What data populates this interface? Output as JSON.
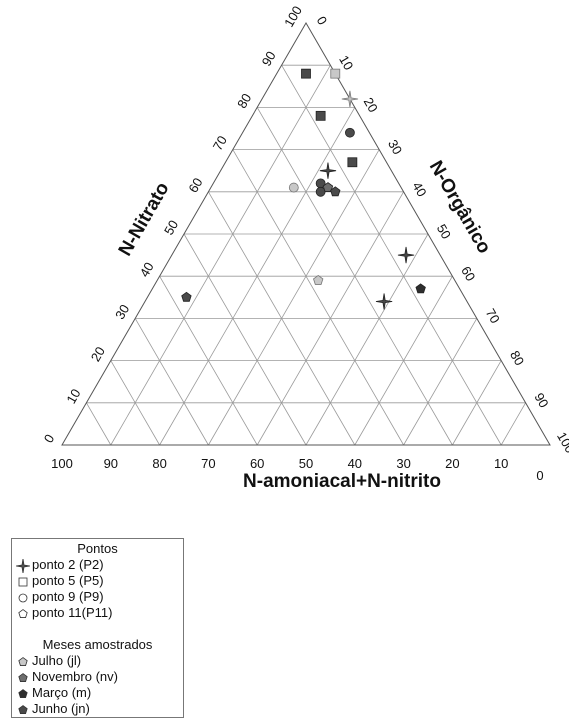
{
  "chart_data": {
    "type": "scatter",
    "subtype": "ternary",
    "title": "",
    "axes": {
      "left": {
        "label": "N-Nitrato",
        "ticks": [
          "0",
          "10",
          "20",
          "30",
          "40",
          "50",
          "60",
          "70",
          "80",
          "90",
          "100"
        ]
      },
      "right": {
        "label": "N-Orgânico",
        "ticks": [
          "0",
          "10",
          "20",
          "30",
          "40",
          "50",
          "60",
          "70",
          "80",
          "90",
          "100"
        ]
      },
      "bottom": {
        "label": "N-amoniacal+N-nitrito",
        "ticks": [
          "100",
          "90",
          "80",
          "70",
          "60",
          "50",
          "40",
          "30",
          "20",
          "10",
          "0"
        ]
      }
    },
    "grid": true,
    "grid_step": 10,
    "points": [
      {
        "point": "P2",
        "month": "jl",
        "nitrato": 82,
        "organico": 18,
        "amoniacal": 0
      },
      {
        "point": "P2",
        "month": "jn",
        "nitrato": 65,
        "organico": 22,
        "amoniacal": 13
      },
      {
        "point": "P2",
        "month": "jn",
        "nitrato": 45,
        "organico": 48,
        "amoniacal": 7
      },
      {
        "point": "P2",
        "month": "jn",
        "nitrato": 34,
        "organico": 49,
        "amoniacal": 17
      },
      {
        "point": "P5",
        "month": "jl",
        "nitrato": 88,
        "organico": 12,
        "amoniacal": 0
      },
      {
        "point": "P5",
        "month": "jn",
        "nitrato": 88,
        "organico": 6,
        "amoniacal": 6
      },
      {
        "point": "P5",
        "month": "jn",
        "nitrato": 78,
        "organico": 14,
        "amoniacal": 8
      },
      {
        "point": "P5",
        "month": "jn",
        "nitrato": 67,
        "organico": 26,
        "amoniacal": 7
      },
      {
        "point": "P9",
        "month": "jn",
        "nitrato": 74,
        "organico": 22,
        "amoniacal": 4
      },
      {
        "point": "P9",
        "month": "jl",
        "nitrato": 61,
        "organico": 17,
        "amoniacal": 22
      },
      {
        "point": "P9",
        "month": "jn",
        "nitrato": 62,
        "organico": 22,
        "amoniacal": 16
      },
      {
        "point": "P9",
        "month": "jn",
        "nitrato": 60,
        "organico": 23,
        "amoniacal": 17
      },
      {
        "point": "P11",
        "month": "nv",
        "nitrato": 61,
        "organico": 24,
        "amoniacal": 15
      },
      {
        "point": "P11",
        "month": "jn",
        "nitrato": 60,
        "organico": 26,
        "amoniacal": 14
      },
      {
        "point": "P11",
        "month": "jl",
        "nitrato": 39,
        "organico": 33,
        "amoniacal": 28
      },
      {
        "point": "P11",
        "month": "m",
        "nitrato": 37,
        "organico": 55,
        "amoniacal": 8
      },
      {
        "point": "P11",
        "month": "jn",
        "nitrato": 35,
        "organico": 8,
        "amoniacal": 57
      }
    ],
    "legend": {
      "placement": "bottom-left",
      "pontos_title": "Pontos",
      "pontos": [
        {
          "key": "P2",
          "label": "ponto 2 (P2)",
          "symbol": "star4"
        },
        {
          "key": "P5",
          "label": "ponto 5 (P5)",
          "symbol": "square"
        },
        {
          "key": "P9",
          "label": "ponto 9 (P9)",
          "symbol": "circle"
        },
        {
          "key": "P11",
          "label": "ponto 11(P11)",
          "symbol": "pentagon"
        }
      ],
      "meses_title": "Meses amostrados",
      "meses": [
        {
          "key": "jl",
          "label": "Julho (jl)",
          "color": "#c8c8c8"
        },
        {
          "key": "nv",
          "label": "Novembro (nv)",
          "color": "#6e6e6e"
        },
        {
          "key": "m",
          "label": "Março (m)",
          "color": "#2e2e2e"
        },
        {
          "key": "jn",
          "label": "Junho (jn)",
          "color": "#4a4a4a"
        }
      ]
    }
  }
}
